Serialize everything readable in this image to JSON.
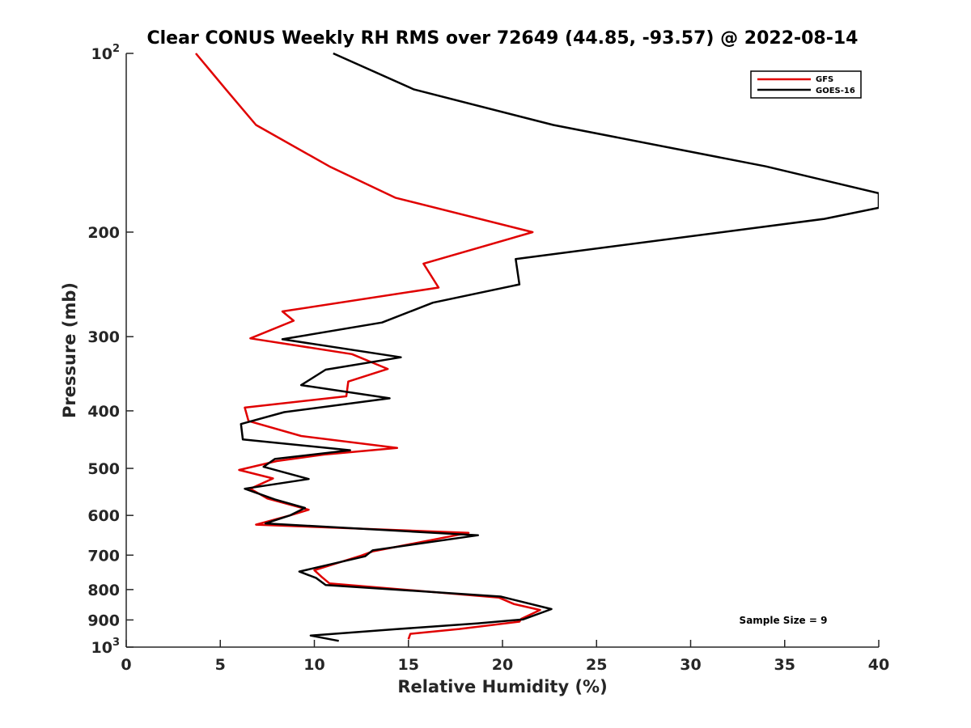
{
  "chart_data": {
    "type": "line",
    "title": "Clear CONUS Weekly RH RMS over 72649 (44.85, -93.57) @ 2022-08-14",
    "xlabel": "Relative Humidity (%)",
    "ylabel": "Pressure (mb)",
    "xlim": [
      0,
      40
    ],
    "ylim": [
      100,
      1000
    ],
    "y_scale": "log",
    "y_reversed": true,
    "grid": false,
    "legend_position": "top-right",
    "x_ticks": [
      {
        "value": 0,
        "label": "0"
      },
      {
        "value": 5,
        "label": "5"
      },
      {
        "value": 10,
        "label": "10"
      },
      {
        "value": 15,
        "label": "15"
      },
      {
        "value": 20,
        "label": "20"
      },
      {
        "value": 25,
        "label": "25"
      },
      {
        "value": 30,
        "label": "30"
      },
      {
        "value": 35,
        "label": "35"
      },
      {
        "value": 40,
        "label": "40"
      }
    ],
    "y_ticks": [
      {
        "value": 100,
        "label": "10",
        "sup": "2"
      },
      {
        "value": 200,
        "label": "200"
      },
      {
        "value": 300,
        "label": "300"
      },
      {
        "value": 400,
        "label": "400"
      },
      {
        "value": 500,
        "label": "500"
      },
      {
        "value": 600,
        "label": "600"
      },
      {
        "value": 700,
        "label": "700"
      },
      {
        "value": 800,
        "label": "800"
      },
      {
        "value": 900,
        "label": "900"
      },
      {
        "value": 1000,
        "label": "10",
        "sup": "3"
      }
    ],
    "annotation": "Sample Size = 9",
    "series": [
      {
        "name": "GFS",
        "color": "#e00000",
        "points": [
          [
            3.7,
            100
          ],
          [
            5.3,
            115
          ],
          [
            6.9,
            132
          ],
          [
            10.8,
            155
          ],
          [
            14.3,
            175
          ],
          [
            21.6,
            200
          ],
          [
            15.8,
            226
          ],
          [
            16.6,
            248
          ],
          [
            8.3,
            272
          ],
          [
            8.9,
            282
          ],
          [
            6.6,
            302
          ],
          [
            12.0,
            321
          ],
          [
            13.9,
            340
          ],
          [
            11.8,
            357
          ],
          [
            11.7,
            378
          ],
          [
            6.3,
            395
          ],
          [
            6.5,
            416
          ],
          [
            9.3,
            441
          ],
          [
            14.4,
            462
          ],
          [
            10.5,
            474
          ],
          [
            8.0,
            486
          ],
          [
            6.0,
            503
          ],
          [
            7.8,
            520
          ],
          [
            6.6,
            541
          ],
          [
            7.5,
            562
          ],
          [
            9.7,
            587
          ],
          [
            8.7,
            600
          ],
          [
            6.9,
            622
          ],
          [
            18.2,
            642
          ],
          [
            13.1,
            690
          ],
          [
            12.5,
            701
          ],
          [
            10.0,
            742
          ],
          [
            10.4,
            762
          ],
          [
            10.8,
            781
          ],
          [
            19.8,
            825
          ],
          [
            20.6,
            846
          ],
          [
            22.0,
            866
          ],
          [
            21.0,
            896
          ],
          [
            20.9,
            906
          ],
          [
            17.7,
            932
          ],
          [
            15.1,
            950
          ],
          [
            15.0,
            970
          ]
        ]
      },
      {
        "name": "GOES-16",
        "color": "#000000",
        "points": [
          [
            11.0,
            100
          ],
          [
            15.3,
            115
          ],
          [
            22.7,
            132
          ],
          [
            34.0,
            155
          ],
          [
            40.0,
            172
          ],
          [
            40.0,
            182
          ],
          [
            37.1,
            190
          ],
          [
            20.7,
            222
          ],
          [
            20.9,
            245
          ],
          [
            16.3,
            263
          ],
          [
            13.6,
            284
          ],
          [
            8.3,
            303
          ],
          [
            14.6,
            325
          ],
          [
            10.6,
            341
          ],
          [
            9.3,
            362
          ],
          [
            14.0,
            381
          ],
          [
            8.4,
            402
          ],
          [
            6.1,
            421
          ],
          [
            6.2,
            447
          ],
          [
            11.9,
            466
          ],
          [
            7.9,
            482
          ],
          [
            7.3,
            497
          ],
          [
            9.7,
            521
          ],
          [
            6.3,
            541
          ],
          [
            7.9,
            564
          ],
          [
            9.5,
            583
          ],
          [
            8.7,
            600
          ],
          [
            7.4,
            619
          ],
          [
            18.7,
            648
          ],
          [
            13.1,
            687
          ],
          [
            12.7,
            703
          ],
          [
            9.2,
            746
          ],
          [
            10.1,
            765
          ],
          [
            10.6,
            786
          ],
          [
            19.9,
            822
          ],
          [
            22.6,
            863
          ],
          [
            21.1,
            898
          ],
          [
            18.7,
            912
          ],
          [
            14.3,
            933
          ],
          [
            9.8,
            956
          ],
          [
            11.3,
            976
          ]
        ]
      }
    ]
  }
}
